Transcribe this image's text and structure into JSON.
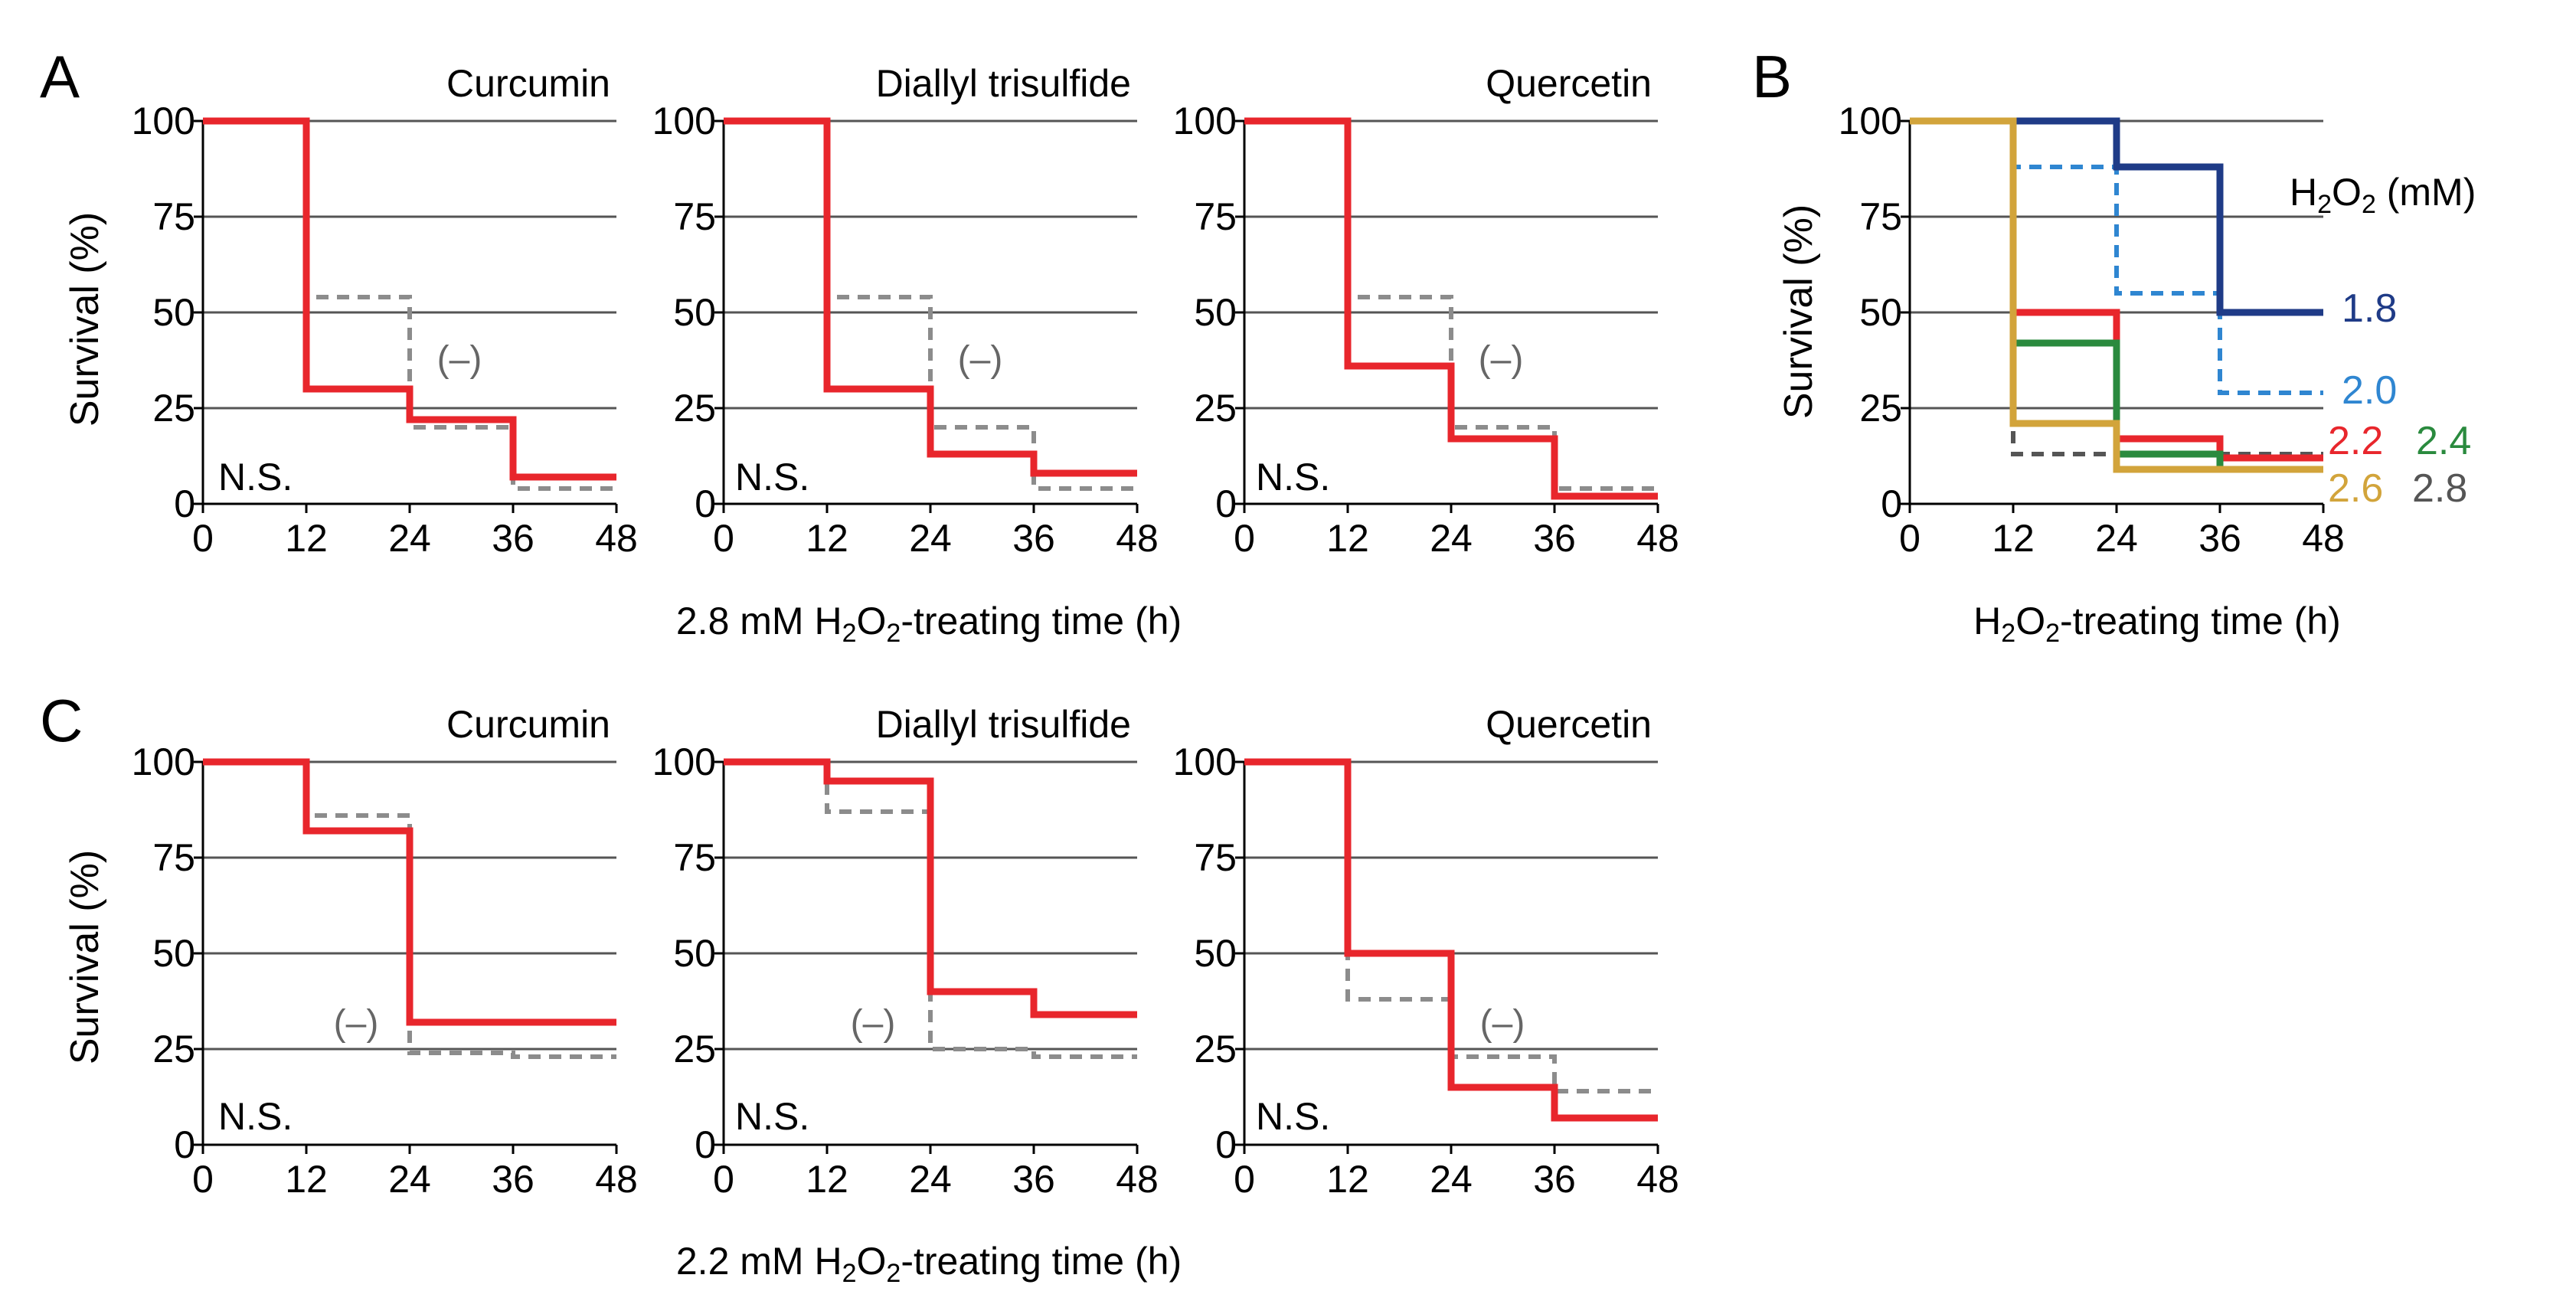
{
  "figure": {
    "panels": {
      "A": {
        "letter": "A",
        "xlabel": {
          "pre": "2.8 mM H",
          "s1": "2",
          "mid": "O",
          "s2": "2",
          "post": "-treating time (h)"
        }
      },
      "B": {
        "letter": "B",
        "xlabel": {
          "pre": "H",
          "s1": "2",
          "mid": "O",
          "s2": "2",
          "post": "-treating time (h)"
        },
        "legend_title": {
          "pre": "H",
          "s1": "2",
          "mid": "O",
          "s2": "2",
          "post": " (mM)"
        }
      },
      "C": {
        "letter": "C",
        "xlabel": {
          "pre": "2.2 mM H",
          "s1": "2",
          "mid": "O",
          "s2": "2",
          "post": "-treating time (h)"
        }
      }
    },
    "ylabel": "Survival (%)",
    "ns_label": "N.S.",
    "neg_label": "(–)",
    "colors": {
      "compound": "#e8262c",
      "control": "#8c8c8c",
      "1.8": "#1f3b87",
      "2.0": "#2f86d1",
      "2.2": "#e8262c",
      "2.4": "#2a8a3e",
      "2.6": "#d2a43b",
      "2.8": "#555555"
    }
  },
  "chart_data": [
    {
      "id": "A1",
      "type": "line",
      "step": true,
      "title": "Curcumin",
      "x": [
        0,
        12,
        24,
        36,
        48
      ],
      "xlim": [
        0,
        48
      ],
      "ylim": [
        0,
        100
      ],
      "xticks": [
        0,
        12,
        24,
        36,
        48
      ],
      "yticks": [
        0,
        25,
        50,
        75,
        100
      ],
      "grid": true,
      "ylabel": "Survival (%)",
      "xlabel": "2.8 mM H2O2-treating time (h)",
      "series": [
        {
          "name": "Curcumin",
          "values": [
            100,
            30,
            22,
            7,
            7
          ]
        },
        {
          "name": "(–)",
          "values": [
            100,
            54,
            20,
            4,
            4
          ],
          "dashed": true
        }
      ],
      "annotations": [
        "N.S.",
        "(–)"
      ]
    },
    {
      "id": "A2",
      "type": "line",
      "step": true,
      "title": "Diallyl trisulfide",
      "x": [
        0,
        12,
        24,
        36,
        48
      ],
      "xlim": [
        0,
        48
      ],
      "ylim": [
        0,
        100
      ],
      "xticks": [
        0,
        12,
        24,
        36,
        48
      ],
      "yticks": [
        0,
        25,
        50,
        75,
        100
      ],
      "grid": true,
      "ylabel": "",
      "xlabel": "2.8 mM H2O2-treating time (h)",
      "series": [
        {
          "name": "Diallyl trisulfide",
          "values": [
            100,
            30,
            13,
            8,
            8
          ]
        },
        {
          "name": "(–)",
          "values": [
            100,
            54,
            20,
            4,
            4
          ],
          "dashed": true
        }
      ],
      "annotations": [
        "N.S.",
        "(–)"
      ]
    },
    {
      "id": "A3",
      "type": "line",
      "step": true,
      "title": "Quercetin",
      "x": [
        0,
        12,
        24,
        36,
        48
      ],
      "xlim": [
        0,
        48
      ],
      "ylim": [
        0,
        100
      ],
      "xticks": [
        0,
        12,
        24,
        36,
        48
      ],
      "yticks": [
        0,
        25,
        50,
        75,
        100
      ],
      "grid": true,
      "ylabel": "",
      "xlabel": "2.8 mM H2O2-treating time (h)",
      "series": [
        {
          "name": "Quercetin",
          "values": [
            100,
            36,
            17,
            2,
            2
          ]
        },
        {
          "name": "(–)",
          "values": [
            100,
            54,
            20,
            4,
            4
          ],
          "dashed": true
        }
      ],
      "annotations": [
        "N.S.",
        "(–)"
      ]
    },
    {
      "id": "B",
      "type": "line",
      "step": true,
      "title": "",
      "x": [
        0,
        12,
        24,
        36,
        48
      ],
      "xlim": [
        0,
        48
      ],
      "ylim": [
        0,
        100
      ],
      "xticks": [
        0,
        12,
        24,
        36,
        48
      ],
      "yticks": [
        0,
        25,
        50,
        75,
        100
      ],
      "grid": true,
      "ylabel": "Survival (%)",
      "xlabel": "H2O2-treating time (h)",
      "legend_title": "H2O2 (mM)",
      "series": [
        {
          "name": "1.8",
          "values": [
            100,
            100,
            88,
            50,
            50
          ]
        },
        {
          "name": "2.0",
          "values": [
            100,
            88,
            55,
            29,
            29
          ],
          "dashed": true
        },
        {
          "name": "2.2",
          "values": [
            100,
            50,
            17,
            12,
            12
          ]
        },
        {
          "name": "2.4",
          "values": [
            100,
            42,
            13,
            9,
            9
          ]
        },
        {
          "name": "2.6",
          "values": [
            100,
            21,
            9,
            9,
            9
          ]
        },
        {
          "name": "2.8",
          "values": [
            100,
            13,
            13,
            13,
            13
          ],
          "dashed": true
        }
      ]
    },
    {
      "id": "C1",
      "type": "line",
      "step": true,
      "title": "Curcumin",
      "x": [
        0,
        12,
        24,
        36,
        48
      ],
      "xlim": [
        0,
        48
      ],
      "ylim": [
        0,
        100
      ],
      "xticks": [
        0,
        12,
        24,
        36,
        48
      ],
      "yticks": [
        0,
        25,
        50,
        75,
        100
      ],
      "grid": true,
      "ylabel": "Survival (%)",
      "xlabel": "2.2 mM H2O2-treating time (h)",
      "series": [
        {
          "name": "Curcumin",
          "values": [
            100,
            82,
            32,
            32,
            32
          ]
        },
        {
          "name": "(–)",
          "values": [
            100,
            86,
            24,
            23,
            23
          ],
          "dashed": true
        }
      ],
      "annotations": [
        "N.S.",
        "(–)"
      ]
    },
    {
      "id": "C2",
      "type": "line",
      "step": true,
      "title": "Diallyl trisulfide",
      "x": [
        0,
        12,
        24,
        36,
        48
      ],
      "xlim": [
        0,
        48
      ],
      "ylim": [
        0,
        100
      ],
      "xticks": [
        0,
        12,
        24,
        36,
        48
      ],
      "yticks": [
        0,
        25,
        50,
        75,
        100
      ],
      "grid": true,
      "ylabel": "",
      "xlabel": "2.2 mM H2O2-treating time (h)",
      "series": [
        {
          "name": "Diallyl trisulfide",
          "values": [
            100,
            95,
            40,
            34,
            34
          ]
        },
        {
          "name": "(–)",
          "values": [
            100,
            87,
            25,
            23,
            23
          ],
          "dashed": true
        }
      ],
      "annotations": [
        "N.S.",
        "(–)"
      ]
    },
    {
      "id": "C3",
      "type": "line",
      "step": true,
      "title": "Quercetin",
      "x": [
        0,
        12,
        24,
        36,
        48
      ],
      "xlim": [
        0,
        48
      ],
      "ylim": [
        0,
        100
      ],
      "xticks": [
        0,
        12,
        24,
        36,
        48
      ],
      "yticks": [
        0,
        25,
        50,
        75,
        100
      ],
      "grid": true,
      "ylabel": "",
      "xlabel": "2.2 mM H2O2-treating time (h)",
      "series": [
        {
          "name": "Quercetin",
          "values": [
            100,
            50,
            15,
            7,
            7
          ]
        },
        {
          "name": "(–)",
          "values": [
            100,
            38,
            23,
            14,
            14
          ],
          "dashed": true
        }
      ],
      "annotations": [
        "N.S.",
        "(–)"
      ]
    }
  ]
}
